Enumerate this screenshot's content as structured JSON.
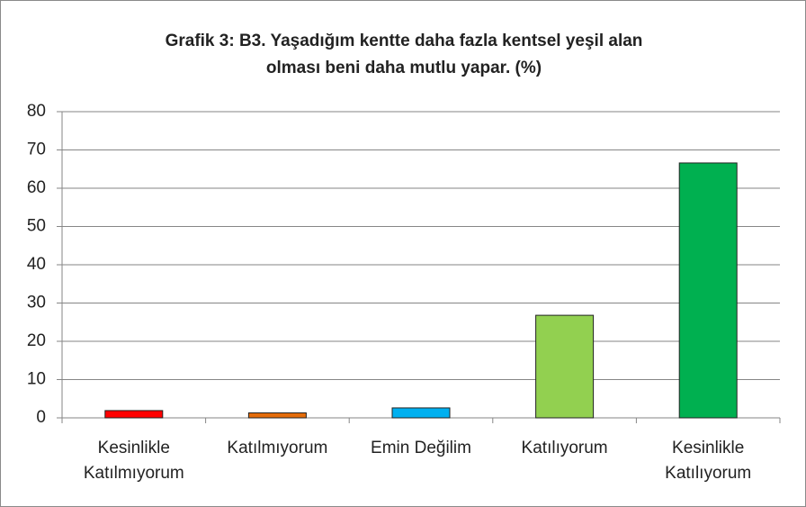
{
  "chart_data": {
    "type": "bar",
    "title": [
      "Grafik 3: B3. Yaşadığım kentte daha fazla kentsel yeşil alan",
      "olması beni daha mutlu yapar. (%)"
    ],
    "categories": [
      "Kesinlikle Katılmıyorum",
      "Katılmıyorum",
      "Emin Değilim",
      "Katılıyorum",
      "Kesinlikle Katılıyorum"
    ],
    "values": [
      1.9,
      1.3,
      2.6,
      26.8,
      66.6
    ],
    "colors": [
      "#ff0000",
      "#e46c0a",
      "#00b0f0",
      "#92d050",
      "#00b050"
    ],
    "ylim": [
      0,
      80
    ],
    "yticks": [
      0,
      10,
      20,
      30,
      40,
      50,
      60,
      70,
      80
    ],
    "grid": true
  }
}
